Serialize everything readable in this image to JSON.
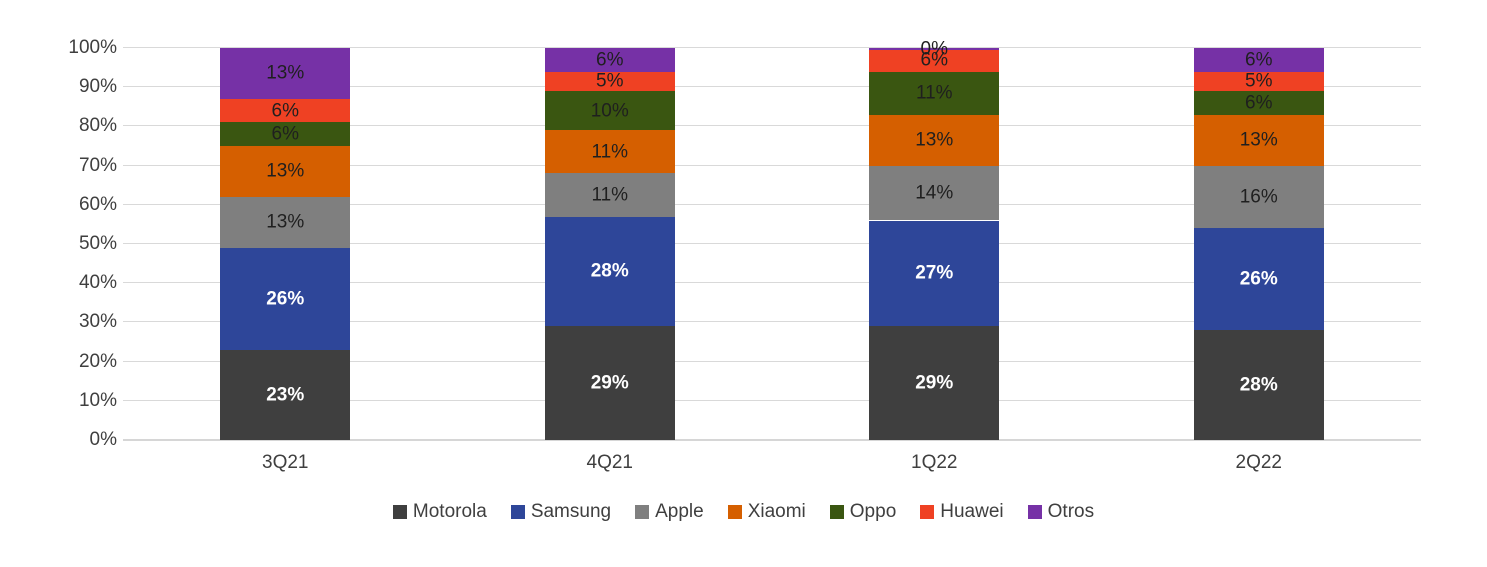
{
  "chart_data": {
    "type": "bar",
    "stacked": true,
    "orientation": "vertical",
    "title": "",
    "xlabel": "",
    "ylabel": "",
    "ylim": [
      0,
      100
    ],
    "grid": true,
    "gridline_color": "#d9d9d9",
    "axis_text_color": "#3f3f3f",
    "legend_position": "bottom",
    "value_suffix": "%",
    "categories": [
      "3Q21",
      "4Q21",
      "1Q22",
      "2Q22"
    ],
    "yticks": [
      "0%",
      "10%",
      "20%",
      "30%",
      "40%",
      "50%",
      "60%",
      "70%",
      "80%",
      "90%",
      "100%"
    ],
    "series": [
      {
        "name": "Motorola",
        "values": [
          23,
          29,
          29,
          28
        ],
        "color": "#3f3f3f",
        "label_color": "#ffffff",
        "label_bold": true
      },
      {
        "name": "Samsung",
        "values": [
          26,
          28,
          27,
          26
        ],
        "color": "#2e4699",
        "label_color": "#ffffff",
        "label_bold": true
      },
      {
        "name": "Apple",
        "values": [
          13,
          11,
          14,
          16
        ],
        "color": "#7f7f7f",
        "label_color": "#1f1f1f",
        "label_bold": false
      },
      {
        "name": "Xiaomi",
        "values": [
          13,
          11,
          13,
          13
        ],
        "color": "#d55f00",
        "label_color": "#1f1f1f",
        "label_bold": false
      },
      {
        "name": "Oppo",
        "values": [
          6,
          10,
          11,
          6
        ],
        "color": "#3a5611",
        "label_color": "#1f1f1f",
        "label_bold": false
      },
      {
        "name": "Huawei",
        "values": [
          6,
          5,
          6,
          5
        ],
        "color": "#ef4123",
        "label_color": "#1f1f1f",
        "label_bold": false
      },
      {
        "name": "Otros",
        "values": [
          13,
          6,
          0,
          6
        ],
        "color": "#7631a6",
        "label_color": "#1f1f1f",
        "label_bold": false
      }
    ]
  }
}
